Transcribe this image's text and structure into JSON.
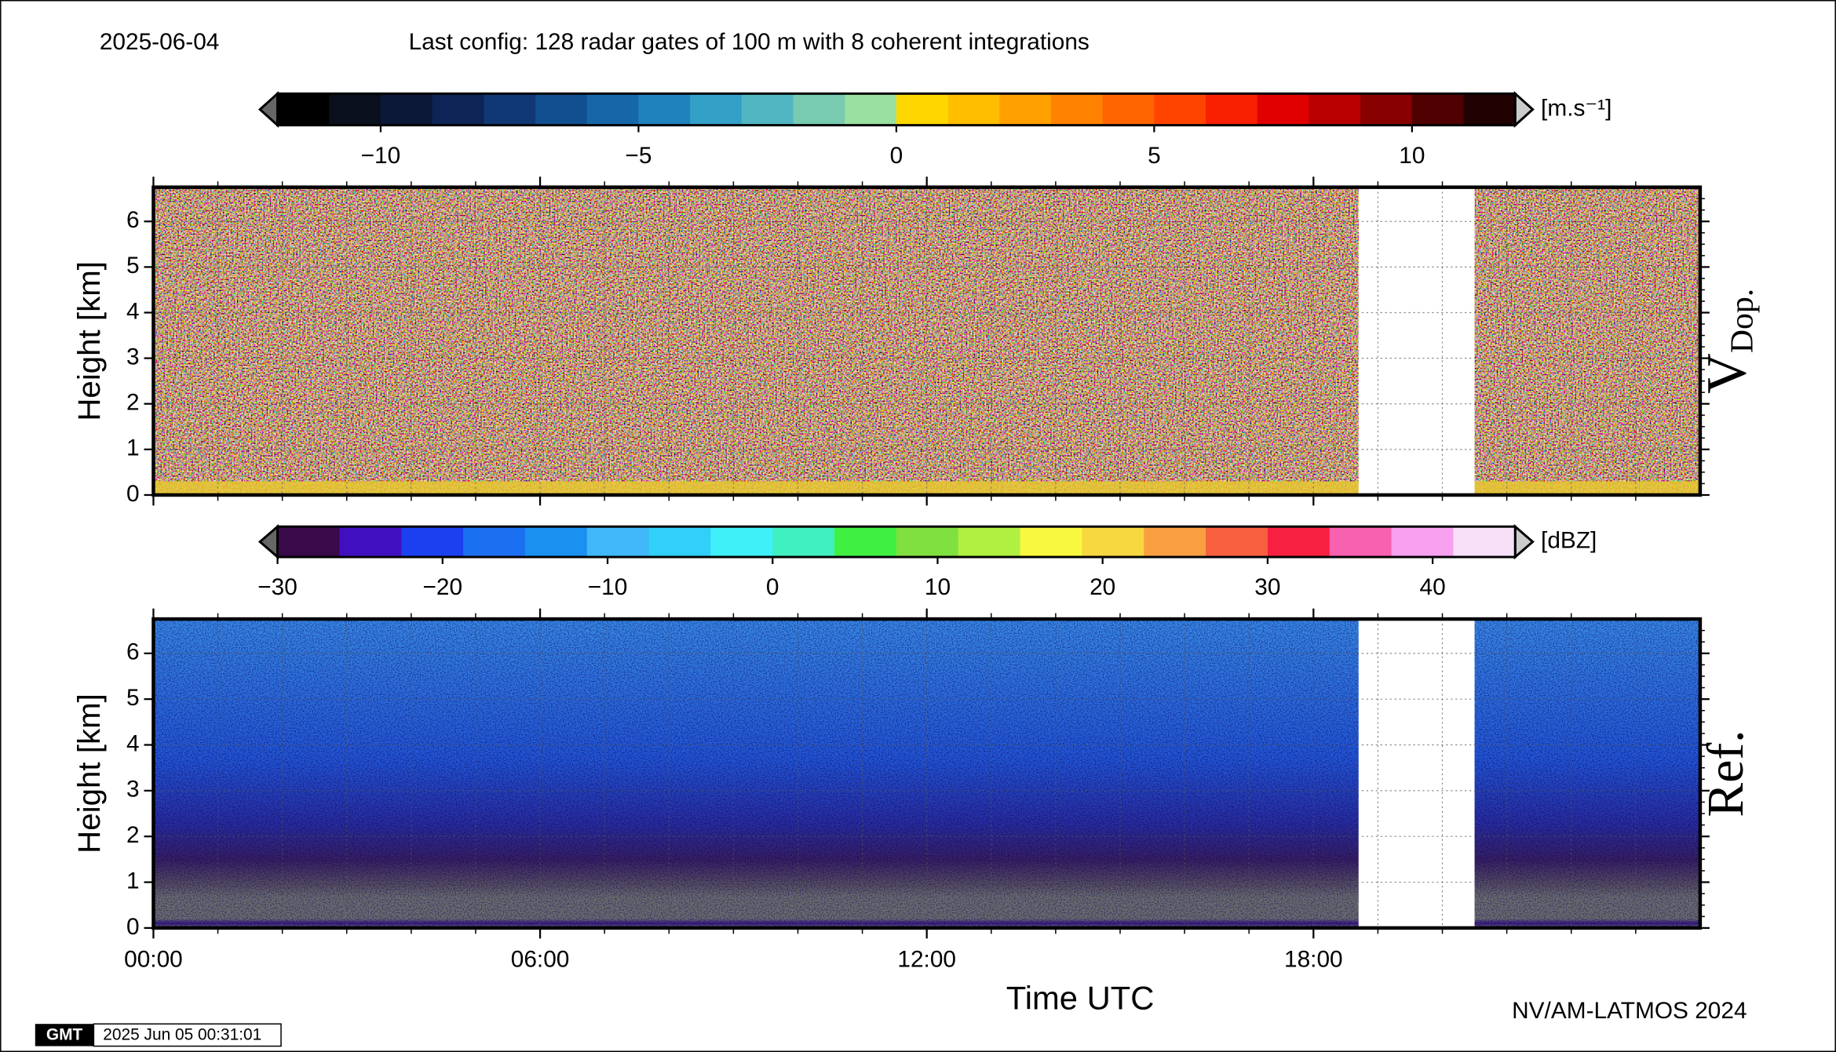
{
  "date": "2025-06-04",
  "config": "Last config: 128 radar gates of 100 m with 8 coherent integrations",
  "credit": "NV/AM-LATMOS 2024",
  "logo": "GMT",
  "timestamp": "2025 Jun 05 00:31:01",
  "chart_data": [
    {
      "type": "heatmap",
      "ylabel": "Height [km]",
      "panel_label": "V",
      "panel_label_sub": "Dop.",
      "ylim": [
        0,
        6.75
      ],
      "yticks": [
        0,
        1,
        2,
        3,
        4,
        5,
        6
      ],
      "grid": true,
      "no_data": [
        18.7,
        20.5
      ],
      "colorbar": {
        "lim": [
          -12,
          12
        ],
        "unit": "[m.s⁻¹]",
        "extend": "both",
        "ticks": [
          {
            "value": -10,
            "label": "−10"
          },
          {
            "value": -5,
            "label": "−5"
          },
          0,
          5,
          10
        ],
        "colors": [
          "#000000",
          "#0a0f1e",
          "#0c1838",
          "#0e2456",
          "#103874",
          "#124f90",
          "#1767a8",
          "#1f82bc",
          "#33a0c8",
          "#52b6c2",
          "#78cab0",
          "#9ae0a0",
          "#ffd700",
          "#ffbe00",
          "#ffa000",
          "#ff8200",
          "#ff6400",
          "#ff4400",
          "#f82000",
          "#e00000",
          "#b80000",
          "#880000",
          "#500000",
          "#200000"
        ]
      }
    },
    {
      "type": "heatmap",
      "ylabel": "Height [km]",
      "panel_label": "Ref.",
      "xlabel": "Time UTC",
      "xlim": [
        0,
        24
      ],
      "xminor_step": 1,
      "xticks": [
        {
          "value": 0,
          "label": "00:00"
        },
        {
          "value": 6,
          "label": "06:00"
        },
        {
          "value": 12,
          "label": "12:00"
        },
        {
          "value": 18,
          "label": "18:00"
        }
      ],
      "ylim": [
        0,
        6.75
      ],
      "yticks": [
        0,
        1,
        2,
        3,
        4,
        5,
        6
      ],
      "grid": true,
      "no_data": [
        18.7,
        20.5
      ],
      "colorbar": {
        "lim": [
          -30,
          45
        ],
        "unit": "[dBZ]",
        "extend": "both",
        "ticks": [
          {
            "value": -30,
            "label": "−30"
          },
          {
            "value": -20,
            "label": "−20"
          },
          {
            "value": -10,
            "label": "−10"
          },
          0,
          10,
          20,
          30,
          40
        ],
        "colors": [
          "#3a0a4a",
          "#4010c0",
          "#1a40f0",
          "#1a70f0",
          "#1a90f0",
          "#40b8f8",
          "#30d0f8",
          "#40f0f8",
          "#40f0c0",
          "#40f040",
          "#80e040",
          "#b0f040",
          "#f8f840",
          "#f8d840",
          "#f8a040",
          "#f86040",
          "#f82040",
          "#f860b0",
          "#f8a0f0",
          "#f8e0f8"
        ]
      }
    }
  ]
}
